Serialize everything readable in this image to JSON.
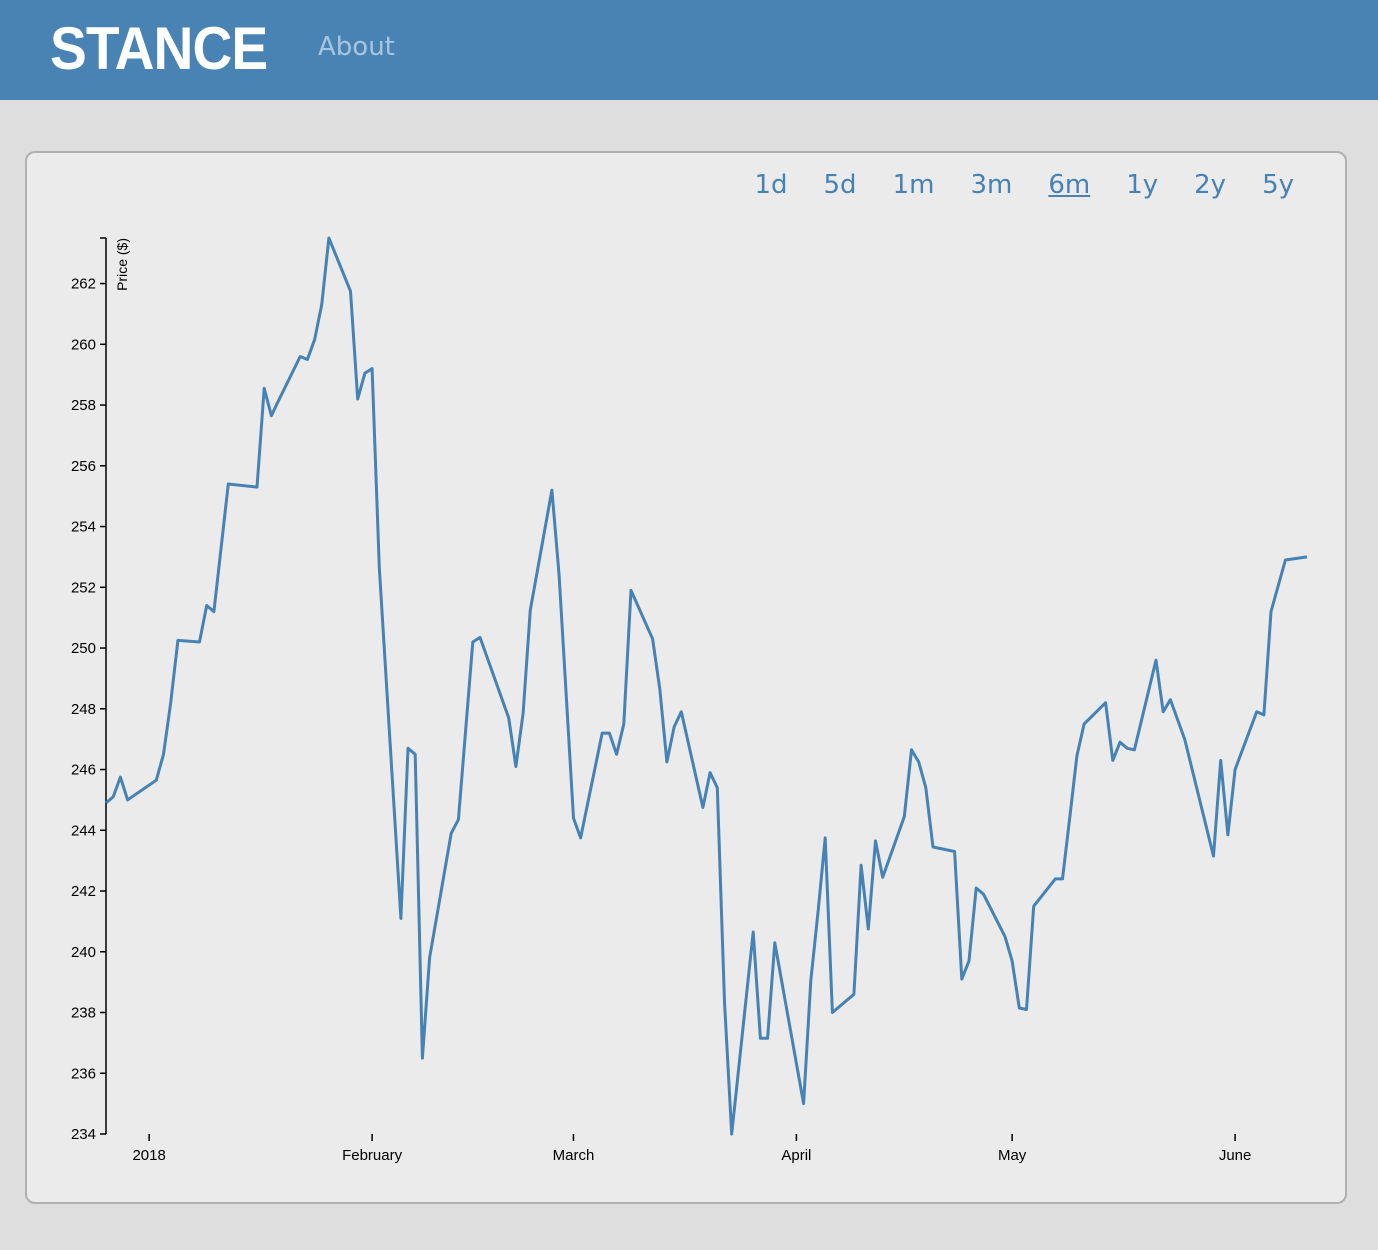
{
  "header": {
    "brand": "STANCE",
    "nav": [
      "About"
    ]
  },
  "range_buttons": [
    {
      "label": "1d"
    },
    {
      "label": "5d"
    },
    {
      "label": "1m"
    },
    {
      "label": "3m"
    },
    {
      "label": "6m",
      "selected": true
    },
    {
      "label": "1y"
    },
    {
      "label": "2y"
    },
    {
      "label": "5y"
    }
  ],
  "chart_data": {
    "type": "line",
    "ylabel": "Price ($)",
    "color": "#4682b4",
    "x": [
      -6,
      -5,
      -4,
      -3,
      1,
      2,
      3,
      4,
      7,
      8,
      9,
      11,
      15,
      16,
      17,
      18,
      21,
      22,
      23,
      24,
      25,
      28,
      29,
      30,
      31,
      32,
      35,
      36,
      37,
      38,
      39,
      42,
      43,
      45,
      46,
      50,
      51,
      52,
      53,
      56,
      57,
      59,
      60,
      63,
      64,
      65,
      66,
      67,
      70,
      71,
      72,
      73,
      74,
      77,
      78,
      79,
      80,
      81,
      84,
      85,
      86,
      87,
      91,
      92,
      93,
      94,
      95,
      98,
      99,
      100,
      101,
      102,
      105,
      106,
      107,
      108,
      109,
      112,
      113,
      114,
      115,
      116,
      119,
      120,
      121,
      122,
      123,
      126,
      127,
      128,
      129,
      130,
      133,
      134,
      135,
      136,
      137,
      140,
      141,
      142,
      144,
      148,
      149,
      150,
      151,
      154,
      155,
      156,
      158,
      161
    ],
    "values": [
      244.9,
      245.1,
      245.75,
      245.0,
      245.65,
      246.5,
      248.2,
      250.25,
      250.2,
      251.4,
      251.2,
      255.4,
      255.3,
      258.55,
      257.65,
      258.15,
      259.6,
      259.5,
      260.15,
      261.3,
      263.5,
      261.75,
      258.2,
      259.05,
      259.2,
      252.65,
      241.1,
      246.7,
      246.5,
      236.5,
      239.8,
      243.9,
      244.35,
      250.2,
      250.35,
      247.7,
      246.1,
      247.85,
      251.25,
      255.2,
      252.4,
      244.4,
      243.75,
      247.2,
      247.2,
      246.5,
      247.5,
      251.9,
      250.3,
      248.65,
      246.25,
      247.4,
      247.9,
      244.75,
      245.9,
      245.4,
      238.35,
      234.0,
      240.65,
      237.15,
      237.15,
      240.3,
      235.0,
      239.05,
      241.3,
      243.75,
      238.0,
      238.6,
      242.85,
      240.75,
      243.65,
      242.45,
      244.45,
      246.65,
      246.25,
      245.4,
      243.45,
      243.3,
      239.1,
      239.7,
      242.1,
      241.9,
      240.5,
      239.7,
      238.15,
      238.1,
      241.5,
      242.4,
      242.4,
      244.4,
      246.45,
      247.5,
      248.2,
      246.3,
      246.9,
      246.7,
      246.65,
      249.6,
      247.9,
      248.3,
      247.0,
      243.15,
      246.3,
      243.85,
      246.0,
      247.9,
      247.8,
      251.2,
      252.9,
      253.0
    ],
    "xlim": [
      -6,
      161
    ],
    "xticks": [
      {
        "value": 0,
        "label": "2018"
      },
      {
        "value": 31,
        "label": "February"
      },
      {
        "value": 59,
        "label": "March"
      },
      {
        "value": 90,
        "label": "April"
      },
      {
        "value": 120,
        "label": "May"
      },
      {
        "value": 151,
        "label": "June"
      }
    ],
    "ylim": [
      234,
      263.5
    ],
    "yticks": [
      234,
      236,
      238,
      240,
      242,
      244,
      246,
      248,
      250,
      252,
      254,
      256,
      258,
      260,
      262
    ]
  }
}
